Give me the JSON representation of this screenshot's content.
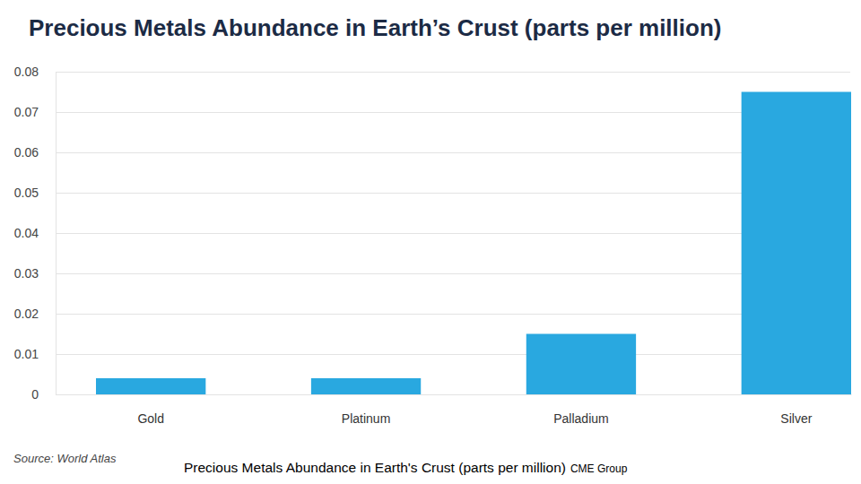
{
  "chart_data": {
    "type": "bar",
    "title": "Precious Metals Abundance in Earth’s Crust (parts per million)",
    "categories": [
      "Gold",
      "Platinum",
      "Palladium",
      "Silver"
    ],
    "values": [
      0.004,
      0.004,
      0.015,
      0.075
    ],
    "color": "#29a8e0",
    "ylim": [
      0,
      0.08
    ],
    "yticks": [
      0,
      0.01,
      0.02,
      0.03,
      0.04,
      0.05,
      0.06,
      0.07,
      0.08
    ],
    "grid": true,
    "source": "Source: World Atlas",
    "caption": "Precious Metals Abundance in Earth's Crust (parts per million)",
    "caption_credit": "CME Group"
  }
}
